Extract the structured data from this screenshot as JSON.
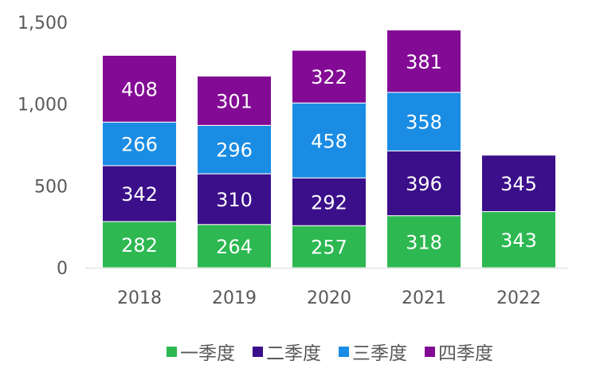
{
  "chart_data": {
    "type": "bar",
    "stacked": true,
    "title": "",
    "xlabel": "",
    "ylabel": "",
    "categories": [
      "2018",
      "2019",
      "2020",
      "2021",
      "2022"
    ],
    "series": [
      {
        "name": "一季度",
        "color": "#2db852",
        "values": [
          282,
          264,
          257,
          318,
          343
        ]
      },
      {
        "name": "二季度",
        "color": "#3b0f8a",
        "values": [
          342,
          310,
          292,
          396,
          345
        ]
      },
      {
        "name": "三季度",
        "color": "#1a8ce3",
        "values": [
          266,
          296,
          458,
          358,
          null
        ]
      },
      {
        "name": "四季度",
        "color": "#830a95",
        "values": [
          408,
          301,
          322,
          381,
          null
        ]
      }
    ],
    "ylim": [
      0,
      1500
    ],
    "yticks": [
      0,
      500,
      1000,
      1500
    ],
    "ytick_labels": [
      "0",
      "500",
      "1,000",
      "1,500"
    ],
    "grid": false,
    "legend_position": "bottom"
  }
}
